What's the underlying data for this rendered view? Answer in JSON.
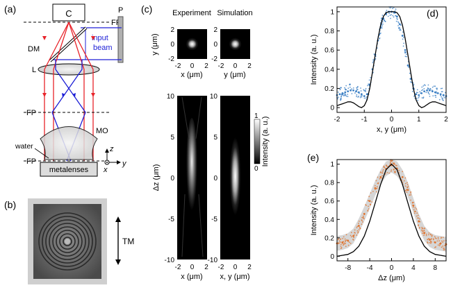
{
  "panels": {
    "a": "(a)",
    "b": "(b)",
    "c": "(c)",
    "d": "(d)",
    "e": "(e)"
  },
  "panel_a": {
    "camera": "C",
    "focal_plane": "FP",
    "polarizer": "P",
    "input_beam_line1": "input",
    "input_beam_line2": "beam",
    "dichroic": "DM",
    "lens": "L",
    "objective": "MO",
    "water": "water",
    "sample": "metalenses",
    "axis_z": "z",
    "axis_x": "x",
    "axis_y": "y",
    "colors": {
      "red": "#e8232a",
      "blue": "#1d1fd6",
      "sample_fill": "#dcdcdc",
      "plate": "#b0b0b0"
    }
  },
  "panel_b": {
    "label": "TM"
  },
  "panel_c": {
    "title_experiment": "Experiment",
    "title_simulation": "Simulation",
    "ylabel_top": "y (μm)",
    "ylabel_bottom": "Δz (μm)",
    "xlabel_top_exp": "x (μm)",
    "xlabel_top_sim": "y (μm)",
    "xlabel_bottom_exp": "x (μm)",
    "xlabel_bottom_sim": "x, y (μm)",
    "colorbar_label": "Intensity (a. u.)",
    "colorbar_ticks": [
      "1",
      "0"
    ],
    "top_yticks": [
      "2",
      "0",
      "-2"
    ],
    "top_xticks": [
      "-2",
      "0",
      "2"
    ],
    "bottom_yticks": [
      "10",
      "5",
      "0",
      "-5",
      "-10"
    ],
    "bottom_xticks": [
      "-2",
      "0",
      "2"
    ]
  },
  "chart_data": [
    {
      "id": "d",
      "type": "scatter",
      "xlabel": "x, y (μm)",
      "ylabel": "Intensity (a. u.)",
      "xlim": [
        -2,
        2
      ],
      "ylim": [
        -0.05,
        1.05
      ],
      "xticks": [
        "-2",
        "-1",
        "0",
        "1",
        "2"
      ],
      "yticks": [
        "0",
        "0.2",
        "0.4",
        "0.6",
        "0.8",
        "1"
      ],
      "series": [
        {
          "style": "points",
          "color": "#3b7fc4",
          "x": [
            -2.0,
            -1.9,
            -1.8,
            -1.7,
            -1.6,
            -1.5,
            -1.4,
            -1.3,
            -1.2,
            -1.1,
            -1.0,
            -0.9,
            -0.8,
            -0.7,
            -0.6,
            -0.5,
            -0.4,
            -0.3,
            -0.2,
            -0.1,
            0.0,
            0.1,
            0.2,
            0.3,
            0.4,
            0.5,
            0.6,
            0.7,
            0.8,
            0.9,
            1.0,
            1.1,
            1.2,
            1.3,
            1.4,
            1.5,
            1.6,
            1.7,
            1.8,
            1.9,
            2.0
          ],
          "y": [
            0.13,
            0.14,
            0.15,
            0.16,
            0.17,
            0.18,
            0.18,
            0.17,
            0.16,
            0.14,
            0.12,
            0.14,
            0.24,
            0.4,
            0.55,
            0.7,
            0.84,
            0.93,
            0.98,
            1.0,
            1.0,
            0.99,
            0.95,
            0.87,
            0.75,
            0.6,
            0.44,
            0.3,
            0.2,
            0.14,
            0.13,
            0.15,
            0.17,
            0.18,
            0.18,
            0.17,
            0.16,
            0.15,
            0.14,
            0.13,
            0.12
          ]
        },
        {
          "style": "line",
          "color": "#000000",
          "x": [
            -2.0,
            -1.9,
            -1.8,
            -1.7,
            -1.6,
            -1.5,
            -1.4,
            -1.3,
            -1.2,
            -1.1,
            -1.0,
            -0.9,
            -0.8,
            -0.7,
            -0.6,
            -0.5,
            -0.4,
            -0.3,
            -0.2,
            -0.1,
            0.0,
            0.1,
            0.2,
            0.3,
            0.4,
            0.5,
            0.6,
            0.7,
            0.8,
            0.9,
            1.0,
            1.1,
            1.2,
            1.3,
            1.4,
            1.5,
            1.6,
            1.7,
            1.8,
            1.9,
            2.0
          ],
          "y": [
            0.02,
            0.03,
            0.04,
            0.05,
            0.06,
            0.06,
            0.05,
            0.03,
            0.01,
            0.0,
            0.02,
            0.08,
            0.2,
            0.37,
            0.55,
            0.72,
            0.86,
            0.95,
            0.99,
            1.0,
            1.0,
            1.0,
            0.99,
            0.95,
            0.86,
            0.72,
            0.55,
            0.37,
            0.2,
            0.08,
            0.02,
            0.0,
            0.01,
            0.03,
            0.05,
            0.06,
            0.06,
            0.05,
            0.04,
            0.03,
            0.02
          ]
        }
      ]
    },
    {
      "id": "e",
      "type": "scatter",
      "xlabel": "Δz (μm)",
      "ylabel": "Intensity (a. u.)",
      "xlim": [
        -10,
        10
      ],
      "ylim": [
        -0.05,
        1.05
      ],
      "xticks": [
        "-8",
        "-4",
        "0",
        "4",
        "8"
      ],
      "yticks": [
        "0",
        "0.2",
        "0.4",
        "0.6",
        "0.8",
        "1"
      ],
      "series": [
        {
          "style": "points",
          "color": "#e0742f",
          "x": [
            -10,
            -9,
            -8,
            -7,
            -6,
            -5,
            -4,
            -3,
            -2,
            -1,
            0,
            1,
            2,
            3,
            4,
            5,
            6,
            7,
            8,
            9,
            10
          ],
          "y": [
            0.14,
            0.15,
            0.17,
            0.22,
            0.33,
            0.46,
            0.6,
            0.74,
            0.86,
            0.95,
            0.99,
            0.95,
            0.86,
            0.72,
            0.55,
            0.38,
            0.25,
            0.18,
            0.15,
            0.14,
            0.13
          ]
        },
        {
          "style": "band",
          "color": "#c8c8c8",
          "x": [
            -10,
            -9,
            -8,
            -7,
            -6,
            -5,
            -4,
            -3,
            -2,
            -1,
            0,
            1,
            2,
            3,
            4,
            5,
            6,
            7,
            8,
            9,
            10
          ],
          "y": [
            0.14,
            0.15,
            0.17,
            0.22,
            0.33,
            0.46,
            0.6,
            0.74,
            0.86,
            0.95,
            0.99,
            0.95,
            0.86,
            0.72,
            0.55,
            0.38,
            0.25,
            0.18,
            0.15,
            0.14,
            0.13
          ]
        },
        {
          "style": "line",
          "color": "#000000",
          "x": [
            -10,
            -9,
            -8,
            -7,
            -6,
            -5,
            -4,
            -3,
            -2,
            -1,
            0,
            1,
            2,
            3,
            4,
            5,
            6,
            7,
            8,
            9,
            10
          ],
          "y": [
            0.0,
            0.01,
            0.02,
            0.05,
            0.11,
            0.22,
            0.38,
            0.58,
            0.78,
            0.94,
            1.0,
            0.94,
            0.78,
            0.58,
            0.38,
            0.22,
            0.11,
            0.05,
            0.02,
            0.01,
            0.0
          ]
        }
      ]
    }
  ]
}
